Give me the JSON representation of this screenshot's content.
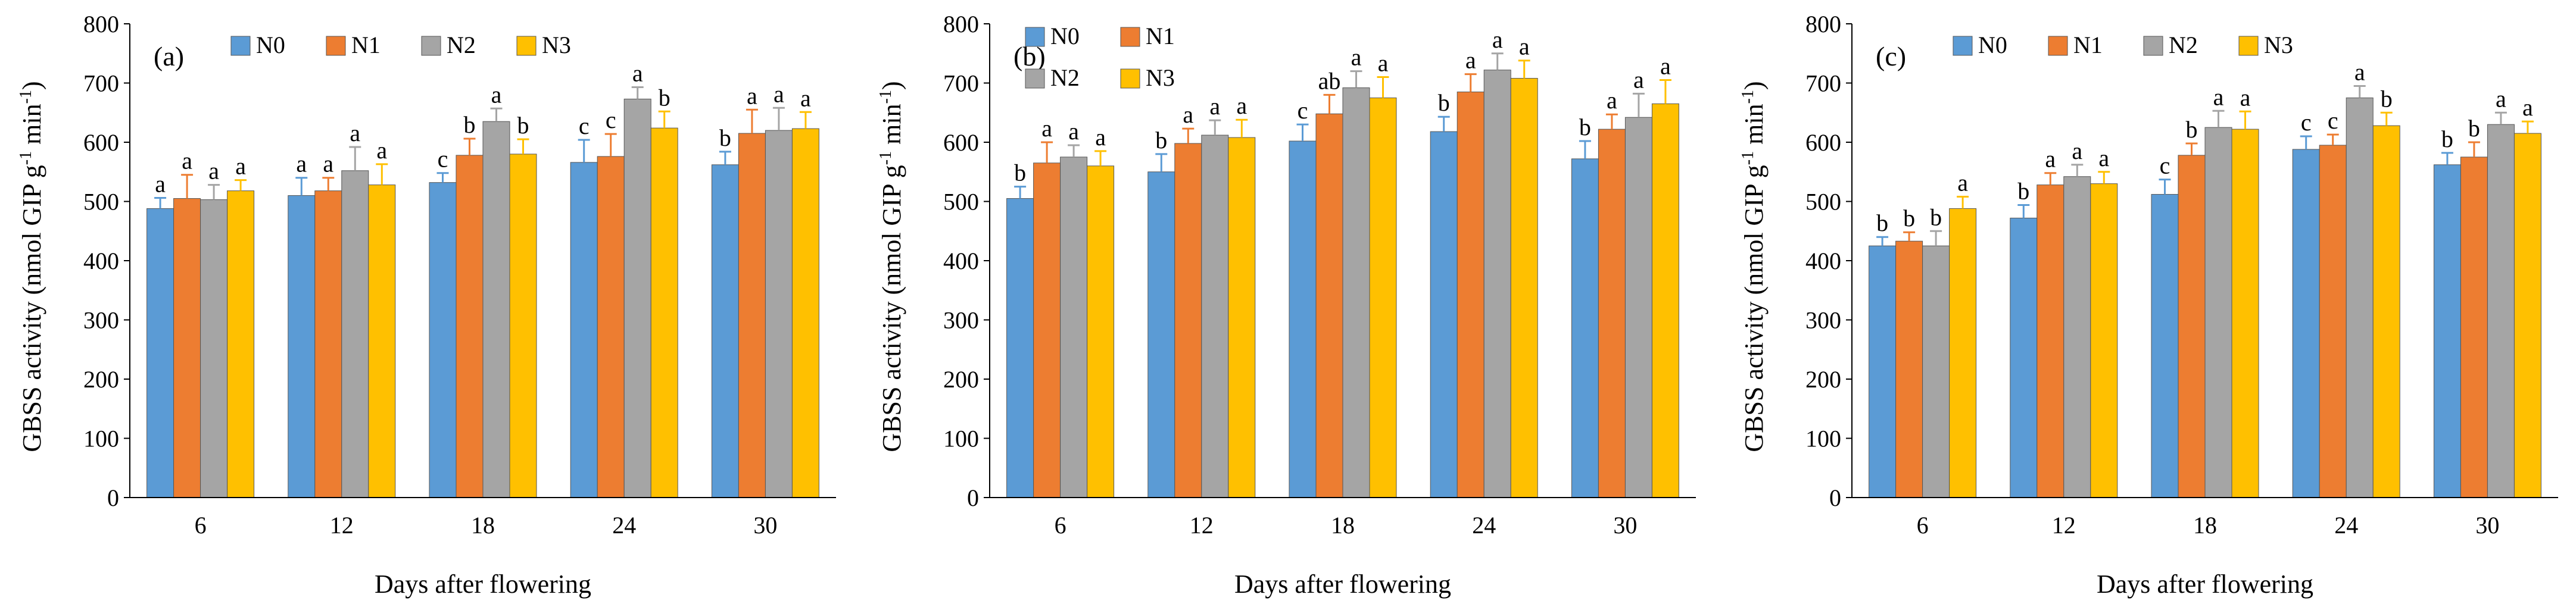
{
  "legend_colors": {
    "N0": "#5B9BD5",
    "N1": "#ED7D31",
    "N2": "#A5A5A5",
    "N3": "#FFC000"
  },
  "chart_data": [
    {
      "type": "bar",
      "panel_label": "(a)",
      "xlabel": "Days after flowering",
      "ylabel_main": "GBSS activity (nmol GIP g",
      "ylabel_sup": "-1",
      "ylabel_mid": " min",
      "ylabel_sup2": "-1",
      "ylabel_end": ")",
      "ylim": [
        0,
        800
      ],
      "yticks": [
        "0",
        "100",
        "200",
        "300",
        "400",
        "500",
        "600",
        "700",
        "800"
      ],
      "legend_layout": "one-row",
      "categories": [
        "6",
        "12",
        "18",
        "24",
        "30"
      ],
      "series": [
        {
          "name": "N0",
          "color": "#5B9BD5",
          "values": [
            488,
            510,
            532,
            566,
            562
          ],
          "errors": [
            18,
            30,
            16,
            38,
            22
          ],
          "letters": [
            "a",
            "a",
            "c",
            "c",
            "b"
          ]
        },
        {
          "name": "N1",
          "color": "#ED7D31",
          "values": [
            505,
            518,
            578,
            576,
            615
          ],
          "errors": [
            40,
            22,
            28,
            38,
            40
          ],
          "letters": [
            "a",
            "a",
            "b",
            "c",
            "a"
          ]
        },
        {
          "name": "N2",
          "color": "#A5A5A5",
          "values": [
            503,
            552,
            635,
            673,
            620
          ],
          "errors": [
            25,
            40,
            22,
            20,
            38
          ],
          "letters": [
            "a",
            "a",
            "a",
            "a",
            "a"
          ]
        },
        {
          "name": "N3",
          "color": "#FFC000",
          "values": [
            518,
            528,
            580,
            624,
            623
          ],
          "errors": [
            18,
            35,
            25,
            28,
            28
          ],
          "letters": [
            "a",
            "a",
            "b",
            "b",
            "a"
          ]
        }
      ]
    },
    {
      "type": "bar",
      "panel_label": "(b)",
      "xlabel": "Days after flowering",
      "ylabel_main": "GBSS activity (nmol GIP g",
      "ylabel_sup": "-1",
      "ylabel_mid": " min",
      "ylabel_sup2": "-1",
      "ylabel_end": ")",
      "ylim": [
        0,
        800
      ],
      "yticks": [
        "0",
        "100",
        "200",
        "300",
        "400",
        "500",
        "600",
        "700",
        "800"
      ],
      "legend_layout": "two-rows",
      "categories": [
        "6",
        "12",
        "18",
        "24",
        "30"
      ],
      "series": [
        {
          "name": "N0",
          "color": "#5B9BD5",
          "values": [
            505,
            550,
            602,
            618,
            572
          ],
          "errors": [
            20,
            30,
            28,
            25,
            30
          ],
          "letters": [
            "b",
            "b",
            "c",
            "b",
            "b"
          ]
        },
        {
          "name": "N1",
          "color": "#ED7D31",
          "values": [
            565,
            598,
            648,
            685,
            622
          ],
          "errors": [
            35,
            25,
            32,
            30,
            25
          ],
          "letters": [
            "a",
            "a",
            "ab",
            "a",
            "a"
          ]
        },
        {
          "name": "N2",
          "color": "#A5A5A5",
          "values": [
            575,
            612,
            692,
            722,
            642
          ],
          "errors": [
            20,
            25,
            28,
            28,
            40
          ],
          "letters": [
            "a",
            "a",
            "a",
            "a",
            "a"
          ]
        },
        {
          "name": "N3",
          "color": "#FFC000",
          "values": [
            560,
            608,
            675,
            708,
            665
          ],
          "errors": [
            25,
            30,
            35,
            30,
            40
          ],
          "letters": [
            "a",
            "a",
            "a",
            "a",
            "a"
          ]
        }
      ]
    },
    {
      "type": "bar",
      "panel_label": "(c)",
      "xlabel": "Days after flowering",
      "ylabel_main": "GBSS activity (nmol GIP g",
      "ylabel_sup": "-1",
      "ylabel_mid": " min",
      "ylabel_sup2": "-1",
      "ylabel_end": ")",
      "ylim": [
        0,
        800
      ],
      "yticks": [
        "0",
        "100",
        "200",
        "300",
        "400",
        "500",
        "600",
        "700",
        "800"
      ],
      "legend_layout": "one-row",
      "categories": [
        "6",
        "12",
        "18",
        "24",
        "30"
      ],
      "series": [
        {
          "name": "N0",
          "color": "#5B9BD5",
          "values": [
            425,
            472,
            512,
            588,
            562
          ],
          "errors": [
            15,
            22,
            25,
            22,
            20
          ],
          "letters": [
            "b",
            "b",
            "c",
            "c",
            "b"
          ]
        },
        {
          "name": "N1",
          "color": "#ED7D31",
          "values": [
            433,
            528,
            578,
            595,
            575
          ],
          "errors": [
            15,
            20,
            20,
            18,
            25
          ],
          "letters": [
            "b",
            "a",
            "b",
            "c",
            "b"
          ]
        },
        {
          "name": "N2",
          "color": "#A5A5A5",
          "values": [
            425,
            542,
            625,
            675,
            630
          ],
          "errors": [
            25,
            20,
            28,
            20,
            20
          ],
          "letters": [
            "b",
            "a",
            "a",
            "a",
            "a"
          ]
        },
        {
          "name": "N3",
          "color": "#FFC000",
          "values": [
            488,
            530,
            622,
            628,
            615
          ],
          "errors": [
            20,
            20,
            30,
            22,
            20
          ],
          "letters": [
            "a",
            "a",
            "a",
            "b",
            "a"
          ]
        }
      ]
    }
  ]
}
